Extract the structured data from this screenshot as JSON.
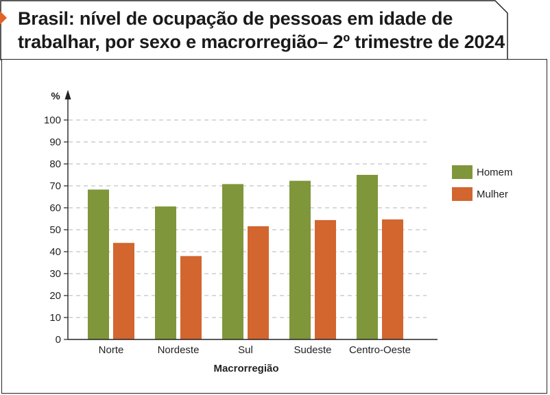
{
  "chart_data": {
    "type": "bar",
    "title": "Brasil: nível de ocupação de pessoas em idade de trabalhar, por sexo e macrorregião– 2º trimestre de 2024",
    "xlabel": "Macrorregião",
    "ylabel": "%",
    "ylim": [
      0,
      100
    ],
    "yticks": [
      "0",
      "10",
      "20",
      "30",
      "40",
      "50",
      "60",
      "70",
      "80",
      "90",
      "100"
    ],
    "grid": "horizontal dashed",
    "legend_position": "right",
    "categories": [
      "Norte",
      "Nordeste",
      "Sul",
      "Sudeste",
      "Centro-Oeste"
    ],
    "series": [
      {
        "name": "Homem",
        "color": "#7f963a",
        "values": [
          68.3,
          60.6,
          70.8,
          72.3,
          75.0
        ]
      },
      {
        "name": "Mulher",
        "color": "#d3652f",
        "values": [
          44.0,
          38.0,
          51.6,
          54.4,
          54.7
        ]
      }
    ]
  }
}
